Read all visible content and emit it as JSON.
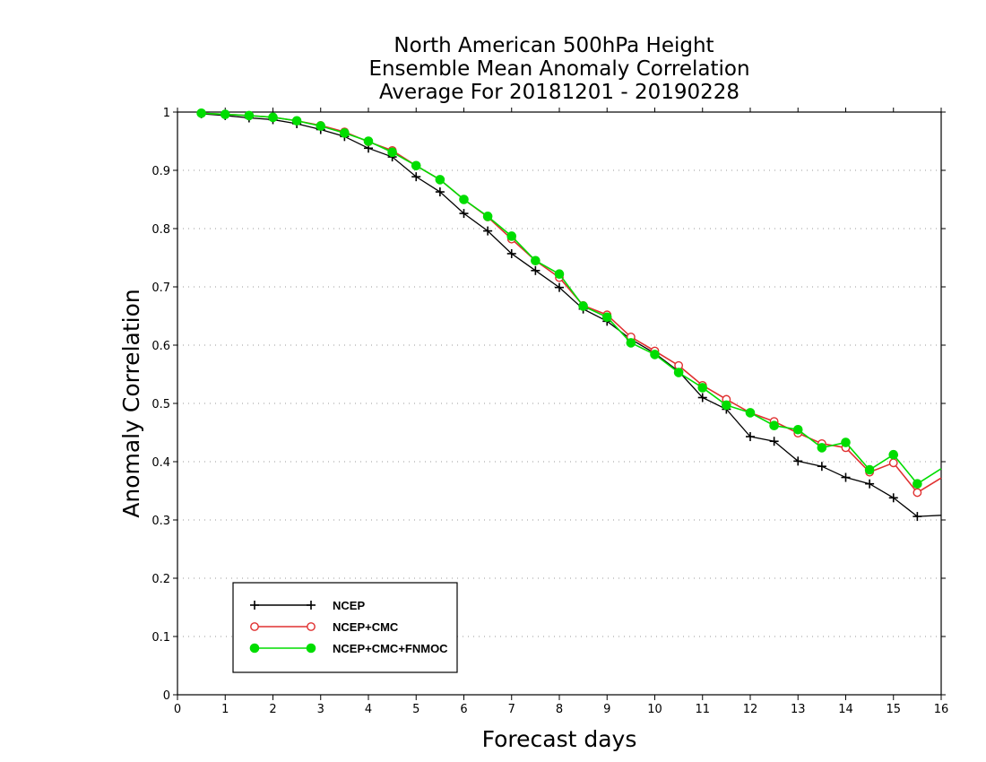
{
  "chart_data": {
    "type": "line",
    "title": [
      "North American 500hPa Height",
      "Ensemble Mean Anomaly Correlation",
      "Average For 20181201 - 20190228"
    ],
    "xlabel": "Forecast days",
    "ylabel": "Anomaly Correlation",
    "xlim": [
      0,
      16
    ],
    "ylim": [
      0,
      1
    ],
    "xticks": [
      "0",
      "1",
      "2",
      "3",
      "4",
      "5",
      "6",
      "7",
      "8",
      "9",
      "10",
      "11",
      "12",
      "13",
      "14",
      "15",
      "16"
    ],
    "yticks": [
      "0",
      "0.1",
      "0.2",
      "0.3",
      "0.4",
      "0.5",
      "0.6",
      "0.7",
      "0.8",
      "0.9",
      "1"
    ],
    "grid": "horizontal dotted",
    "legend_position": "bottom-left",
    "x": [
      0.5,
      1,
      1.5,
      2,
      2.5,
      3,
      3.5,
      4,
      4.5,
      5,
      5.5,
      6,
      6.5,
      7,
      7.5,
      8,
      8.5,
      9,
      9.5,
      10,
      10.5,
      11,
      11.5,
      12,
      12.5,
      13,
      13.5,
      14,
      14.5,
      15,
      15.5,
      16
    ],
    "series": [
      {
        "name": "NCEP",
        "color": "#000000",
        "marker": "plus",
        "values": [
          0.997,
          0.994,
          0.99,
          0.987,
          0.98,
          0.97,
          0.958,
          0.938,
          0.923,
          0.889,
          0.863,
          0.826,
          0.796,
          0.757,
          0.728,
          0.699,
          0.662,
          0.641,
          0.61,
          0.586,
          0.555,
          0.51,
          0.49,
          0.443,
          0.435,
          0.401,
          0.392,
          0.373,
          0.362,
          0.338,
          0.306,
          0.308
        ]
      },
      {
        "name": "NCEP+CMC",
        "color": "#e03030",
        "marker": "open-circle",
        "values": [
          0.998,
          0.996,
          0.994,
          0.991,
          0.985,
          0.977,
          0.966,
          0.949,
          0.934,
          0.908,
          0.884,
          0.85,
          0.82,
          0.782,
          0.745,
          0.716,
          0.668,
          0.652,
          0.614,
          0.59,
          0.565,
          0.531,
          0.507,
          0.484,
          0.469,
          0.449,
          0.431,
          0.424,
          0.382,
          0.398,
          0.347,
          0.372
        ]
      },
      {
        "name": "NCEP+CMC+FNMOC",
        "color": "#00dd00",
        "marker": "filled-circle",
        "values": [
          0.998,
          0.996,
          0.994,
          0.991,
          0.985,
          0.976,
          0.964,
          0.95,
          0.931,
          0.908,
          0.884,
          0.85,
          0.821,
          0.787,
          0.745,
          0.722,
          0.667,
          0.648,
          0.604,
          0.584,
          0.553,
          0.527,
          0.497,
          0.484,
          0.462,
          0.455,
          0.424,
          0.433,
          0.386,
          0.412,
          0.362,
          0.388
        ]
      }
    ]
  }
}
